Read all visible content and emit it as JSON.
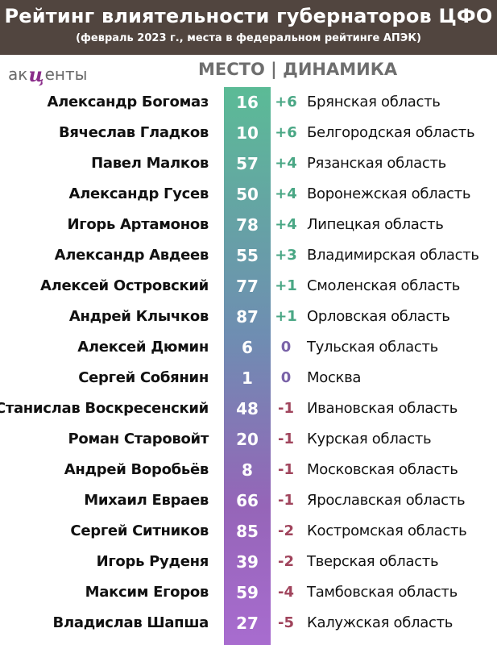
{
  "header": {
    "title": "Рейтинг влиятельности губернаторов ЦФО",
    "subtitle": "(февраль 2023 г., места в федеральном рейтинге АПЭК)"
  },
  "logo": {
    "part1": "ак",
    "part2": "ц",
    "part3": "енты"
  },
  "columns": {
    "heading": "МЕСТО | ДИНАМИКА"
  },
  "colors": {
    "header_bg": "#51453f",
    "up": "#4aa785",
    "zero": "#7a63a8",
    "down": "#a0445c"
  },
  "rows": [
    {
      "name": "Александр Богомаз",
      "place": "16",
      "change": "+6",
      "trend": "up",
      "region": "Брянская область"
    },
    {
      "name": "Вячеслав Гладков",
      "place": "10",
      "change": "+6",
      "trend": "up",
      "region": "Белгородская область"
    },
    {
      "name": "Павел Малков",
      "place": "57",
      "change": "+4",
      "trend": "up",
      "region": "Рязанская область"
    },
    {
      "name": "Александр Гусев",
      "place": "50",
      "change": "+4",
      "trend": "up",
      "region": "Воронежская область"
    },
    {
      "name": "Игорь Артамонов",
      "place": "78",
      "change": "+4",
      "trend": "up",
      "region": "Липецкая область"
    },
    {
      "name": "Александр Авдеев",
      "place": "55",
      "change": "+3",
      "trend": "up",
      "region": "Владимирская область"
    },
    {
      "name": "Алексей Островский",
      "place": "77",
      "change": "+1",
      "trend": "up",
      "region": "Смоленская область"
    },
    {
      "name": "Андрей Клычков",
      "place": "87",
      "change": "+1",
      "trend": "up",
      "region": "Орловская область"
    },
    {
      "name": "Алексей Дюмин",
      "place": "6",
      "change": "0",
      "trend": "zero",
      "region": "Тульская область"
    },
    {
      "name": "Сергей Собянин",
      "place": "1",
      "change": "0",
      "trend": "zero",
      "region": "Москва"
    },
    {
      "name": "Станислав Воскресенский",
      "place": "48",
      "change": "-1",
      "trend": "down",
      "region": "Ивановская область"
    },
    {
      "name": "Роман Старовойт",
      "place": "20",
      "change": "-1",
      "trend": "down",
      "region": "Курская область"
    },
    {
      "name": "Андрей Воробьёв",
      "place": "8",
      "change": "-1",
      "trend": "down",
      "region": "Московская область"
    },
    {
      "name": "Михаил Евраев",
      "place": "66",
      "change": "-1",
      "trend": "down",
      "region": "Ярославская область"
    },
    {
      "name": "Сергей Ситников",
      "place": "85",
      "change": "-2",
      "trend": "down",
      "region": "Костромская область"
    },
    {
      "name": "Игорь Руденя",
      "place": "39",
      "change": "-2",
      "trend": "down",
      "region": "Тверская область"
    },
    {
      "name": "Максим Егоров",
      "place": "59",
      "change": "-4",
      "trend": "down",
      "region": "Тамбовская область"
    },
    {
      "name": "Владислав Шапша",
      "place": "27",
      "change": "-5",
      "trend": "down",
      "region": "Калужская область"
    }
  ]
}
